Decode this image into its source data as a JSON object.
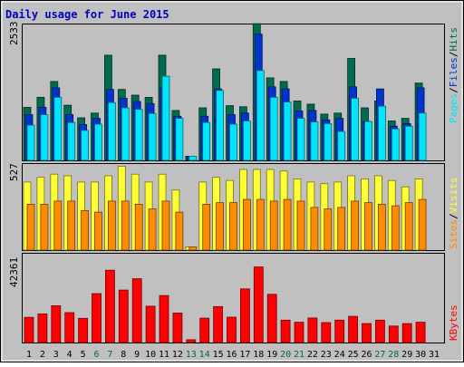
{
  "title": "Daily usage for June 2015",
  "colors": {
    "background": "#c0c0c0",
    "frame": "#000000",
    "title": "#0000c0",
    "hits": "#006a4e",
    "files": "#0033cc",
    "pages": "#00e5ff",
    "visits": "#ffff33",
    "sites": "#ff8c00",
    "kbytes": "#ff0000",
    "weekend": "#006a4e",
    "weekday": "#000000"
  },
  "chart_data": [
    {
      "type": "bar",
      "panel": "top",
      "max_label": "2533",
      "legend": [
        "Pages",
        "Files",
        "Hits"
      ],
      "ylim": [
        0,
        2533
      ],
      "categories": [
        "1",
        "2",
        "3",
        "4",
        "5",
        "6",
        "7",
        "8",
        "9",
        "10",
        "11",
        "12",
        "13",
        "14",
        "15",
        "16",
        "17",
        "18",
        "19",
        "20",
        "21",
        "22",
        "23",
        "24",
        "25",
        "26",
        "27",
        "28",
        "29",
        "30",
        "31"
      ],
      "weekend_days": [
        "6",
        "7",
        "13",
        "14",
        "20",
        "21",
        "27",
        "28"
      ],
      "series": [
        {
          "name": "Hits",
          "values": [
            1010,
            1200,
            1500,
            1050,
            810,
            900,
            2000,
            1350,
            1240,
            1200,
            2000,
            950,
            80,
            1000,
            1740,
            1040,
            1020,
            2600,
            1570,
            1500,
            1130,
            1070,
            880,
            900,
            1940,
            1000,
            1130,
            750,
            800,
            1470,
            0
          ]
        },
        {
          "name": "Files",
          "values": [
            870,
            1010,
            1380,
            870,
            680,
            800,
            1350,
            1180,
            1120,
            1080,
            1380,
            840,
            80,
            840,
            1360,
            870,
            900,
            2400,
            1400,
            1360,
            940,
            950,
            770,
            800,
            1400,
            740,
            1360,
            650,
            700,
            1380,
            0
          ]
        },
        {
          "name": "Pages",
          "values": [
            670,
            870,
            1200,
            720,
            570,
            690,
            1100,
            1000,
            970,
            890,
            1600,
            800,
            80,
            720,
            1330,
            690,
            750,
            1710,
            1200,
            1110,
            800,
            730,
            700,
            550,
            1180,
            740,
            1030,
            600,
            650,
            900,
            0
          ]
        }
      ]
    },
    {
      "type": "bar",
      "panel": "middle",
      "max_label": "527",
      "legend": [
        "Sites",
        "Visits"
      ],
      "ylim": [
        0,
        527
      ],
      "categories": [
        "1",
        "2",
        "3",
        "4",
        "5",
        "6",
        "7",
        "8",
        "9",
        "10",
        "11",
        "12",
        "13",
        "14",
        "15",
        "16",
        "17",
        "18",
        "19",
        "20",
        "21",
        "22",
        "23",
        "24",
        "25",
        "26",
        "27",
        "28",
        "29",
        "30",
        "31"
      ],
      "series": [
        {
          "name": "Visits",
          "values": [
            430,
            460,
            480,
            470,
            430,
            430,
            470,
            530,
            480,
            430,
            480,
            380,
            20,
            430,
            460,
            440,
            510,
            510,
            510,
            500,
            450,
            430,
            420,
            430,
            470,
            450,
            470,
            440,
            400,
            450,
            0
          ]
        },
        {
          "name": "Sites",
          "values": [
            290,
            290,
            310,
            310,
            250,
            240,
            310,
            310,
            290,
            260,
            310,
            240,
            20,
            290,
            300,
            300,
            320,
            320,
            310,
            320,
            310,
            270,
            260,
            270,
            310,
            300,
            290,
            280,
            300,
            320,
            0
          ]
        }
      ]
    },
    {
      "type": "bar",
      "panel": "bottom",
      "max_label": "42361",
      "legend": [
        "KBytes"
      ],
      "ylim": [
        0,
        42361
      ],
      "categories": [
        "1",
        "2",
        "3",
        "4",
        "5",
        "6",
        "7",
        "8",
        "9",
        "10",
        "11",
        "12",
        "13",
        "14",
        "15",
        "16",
        "17",
        "18",
        "19",
        "20",
        "21",
        "22",
        "23",
        "24",
        "25",
        "26",
        "27",
        "28",
        "29",
        "30",
        "31"
      ],
      "series": [
        {
          "name": "KBytes",
          "values": [
            12400,
            14100,
            18100,
            14700,
            11900,
            24100,
            35600,
            25800,
            31400,
            17900,
            23100,
            14500,
            1400,
            12000,
            17700,
            12500,
            26400,
            37200,
            23700,
            11000,
            10000,
            12100,
            9800,
            11000,
            12900,
            9300,
            11000,
            8100,
            9300,
            10000,
            0
          ]
        }
      ]
    }
  ]
}
